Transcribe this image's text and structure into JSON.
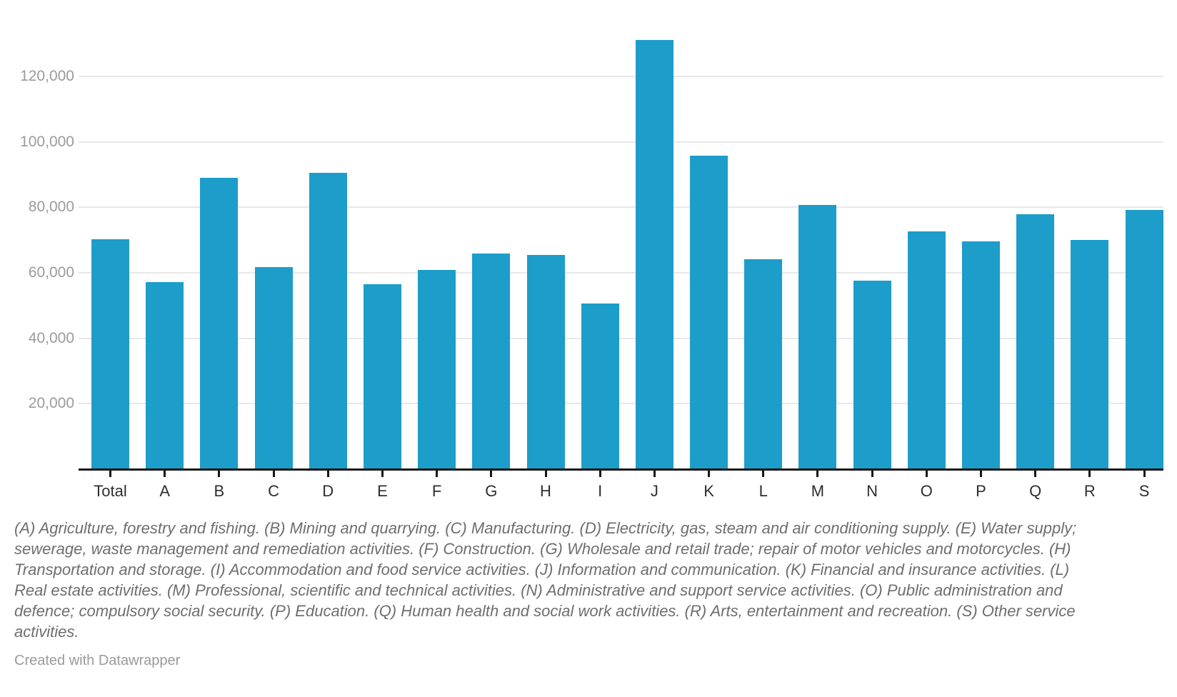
{
  "chart_data": {
    "type": "bar",
    "categories": [
      "Total",
      "A",
      "B",
      "C",
      "D",
      "E",
      "F",
      "G",
      "H",
      "I",
      "J",
      "K",
      "L",
      "M",
      "N",
      "O",
      "P",
      "Q",
      "R",
      "S"
    ],
    "values": [
      70100,
      56900,
      88700,
      61500,
      90400,
      56300,
      60700,
      65600,
      65300,
      50500,
      130900,
      95600,
      64000,
      80600,
      57400,
      72400,
      69400,
      77600,
      69900,
      78900
    ],
    "title": "",
    "xlabel": "",
    "ylabel": "",
    "ylim": [
      0,
      131000
    ],
    "yticks": [
      20000,
      40000,
      60000,
      80000,
      100000,
      120000
    ],
    "ytick_labels": [
      "20,000",
      "40,000",
      "60,000",
      "80,000",
      "100,000",
      "120,000"
    ],
    "grid": "horizontal",
    "legend": "none",
    "bar_color": "#1c9dca"
  },
  "footnote": "(A) Agriculture, forestry and fishing. (B) Mining and quarrying. (C) Manufacturing. (D) Electricity, gas, steam and air conditioning supply. (E) Water supply; sewerage, waste management and remediation activities. (F) Construction. (G) Wholesale and retail trade; repair of motor vehicles and motorcycles. (H) Transportation and storage. (I) Accommodation and food service activities. (J) Information and communication. (K) Financial and insurance activities. (L) Real estate activities. (M) Professional, scientific and technical activities. (N) Administrative and support service activities. (O) Public administration and defence; compulsory social security. (P) Education. (Q) Human health and social work activities. (R) Arts, entertainment and recreation. (S) Other service activities.",
  "credit": "Created with Datawrapper",
  "colors": {
    "bar": "#1c9dca",
    "gridline": "#e8e8e8",
    "axis": "#161616",
    "ytick_text": "#9b9b9b",
    "xtick_text": "#2e2e2e",
    "footnote_text": "#6e6e6e",
    "credit_text": "#9b9b9b"
  }
}
